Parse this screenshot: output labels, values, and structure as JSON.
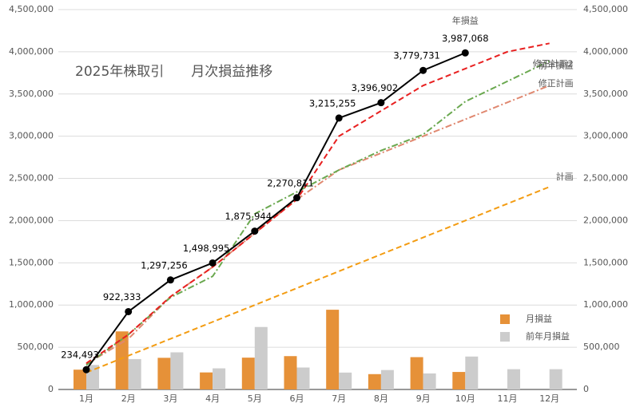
{
  "chart_data": {
    "type": "combo",
    "title": "2025年株取引　　月次損益推移",
    "categories": [
      "1月",
      "2月",
      "3月",
      "4月",
      "5月",
      "6月",
      "7月",
      "8月",
      "9月",
      "10月",
      "11月",
      "12月"
    ],
    "ylim": [
      0,
      4500000
    ],
    "yticks": [
      0,
      {
        "value": 500000,
        "label": "500,000"
      },
      {
        "value": 1000000,
        "label": "1,000,000"
      },
      {
        "value": 1500000,
        "label": "1,500,000"
      },
      {
        "value": 2000000,
        "label": "2,000,000"
      },
      {
        "value": 2500000,
        "label": "2,500,000"
      },
      {
        "value": 3000000,
        "label": "3,000,000"
      },
      {
        "value": 3500000,
        "label": "3,500,000"
      },
      {
        "value": 4000000,
        "label": "4,000,000"
      },
      {
        "value": 4500000,
        "label": "4,500,000"
      }
    ],
    "y2lim": [
      0,
      4500000
    ],
    "y2ticks": [
      0,
      {
        "value": 500000,
        "label": "500,000"
      },
      {
        "value": 1000000,
        "label": "1,000,000"
      },
      {
        "value": 1500000,
        "label": "1,500,000"
      },
      {
        "value": 2000000,
        "label": "2,000,000"
      },
      {
        "value": 2500000,
        "label": "2,500,000"
      },
      {
        "value": 3000000,
        "label": "3,000,000"
      },
      {
        "value": 3500000,
        "label": "3,500,000"
      },
      {
        "value": 4000000,
        "label": "4,000,000"
      },
      {
        "value": 4500000,
        "label": "4,500,000"
      }
    ],
    "grid": true,
    "series": [
      {
        "name": "月損益",
        "type": "bar",
        "color": "#e69138",
        "values": [
          234493,
          687840,
          374923,
          201739,
          376949,
          394867,
          944444,
          181647,
          382829,
          207337,
          null,
          null
        ]
      },
      {
        "name": "前年月損益",
        "type": "bar",
        "color": "#cccccc",
        "values": [
          290000,
          360000,
          440000,
          250000,
          740000,
          260000,
          200000,
          230000,
          190000,
          390000,
          240000,
          240000
        ]
      },
      {
        "name": "計画",
        "type": "line",
        "style": "dashed",
        "color": "#f39c12",
        "values": [
          200000,
          400000,
          600000,
          800000,
          1000000,
          1200000,
          1400000,
          1600000,
          1800000,
          2000000,
          2200000,
          2400000
        ]
      },
      {
        "name": "修正計画",
        "type": "line",
        "style": "dashdot",
        "color": "#e08870",
        "values": [
          300000,
          600000,
          1100000,
          1450000,
          1850000,
          2250000,
          2600000,
          2800000,
          3000000,
          3200000,
          3400000,
          3600000
        ]
      },
      {
        "name": "前年損益",
        "type": "line",
        "style": "dashdot",
        "color": "#6aa84f",
        "values": [
          290000,
          650000,
          1090000,
          1340000,
          2080000,
          2340000,
          2600000,
          2830000,
          3020000,
          3410000,
          3650000,
          3890000
        ]
      },
      {
        "name": "修正計画2",
        "type": "line",
        "style": "dashed",
        "color": "#e82020",
        "values": [
          310000,
          650000,
          1100000,
          1450000,
          1850000,
          2250000,
          3000000,
          3300000,
          3600000,
          3800000,
          4000000,
          4100000
        ]
      },
      {
        "name": "年損益",
        "type": "line",
        "style": "solid",
        "markers": true,
        "color": "#000000",
        "values": [
          234493,
          922333,
          1297256,
          1498995,
          1875944,
          2270811,
          3215255,
          3396902,
          3779731,
          3987068,
          null,
          null
        ],
        "value_labels": [
          "234,493",
          "922,333",
          "1,297,256",
          "1,498,995",
          "1,875,944",
          "2,270,811",
          "3,215,255",
          "3,396,902",
          "3,779,731",
          "3,987,068",
          null,
          null
        ]
      }
    ]
  }
}
